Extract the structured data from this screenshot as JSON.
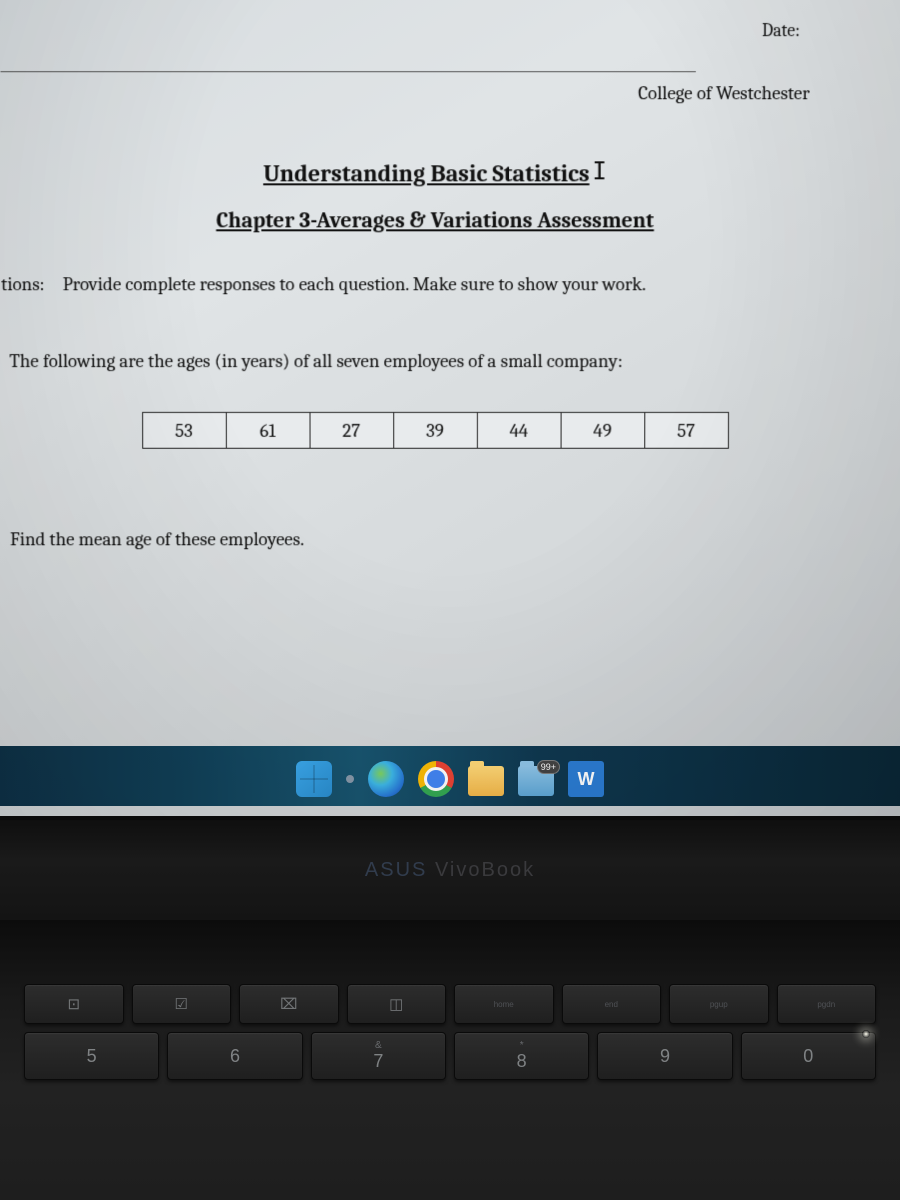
{
  "header": {
    "date_label": "Date:",
    "college": "College of Westchester"
  },
  "document": {
    "title_main": "Understanding Basic Statistics",
    "title_cursor": "I",
    "title_sub": "Chapter 3-Averages & Variations Assessment",
    "instructions_label": "tions:",
    "instructions_text": "Provide complete responses to each question.  Make sure to show your work.",
    "question_intro": "The following are the ages (in years) of all seven employees of a small company:",
    "data_values": [
      "53",
      "61",
      "27",
      "39",
      "44",
      "49",
      "57"
    ],
    "question_sub": "Find the mean age of these employees."
  },
  "taskbar": {
    "badge_count": "99+",
    "word_label": "W"
  },
  "laptop": {
    "brand_prefix": "ASUS ",
    "brand_model": "VivoBook"
  },
  "keyboard": {
    "fn_keys": [
      {
        "sym": "⊡",
        "label": ""
      },
      {
        "sym": "☑",
        "label": ""
      },
      {
        "sym": "⌧",
        "label": ""
      },
      {
        "sym": "◫",
        "label": ""
      },
      {
        "sym": "",
        "label": "home"
      },
      {
        "sym": "",
        "label": "end"
      },
      {
        "sym": "",
        "label": "pgup"
      },
      {
        "sym": "",
        "label": "pgdn"
      }
    ],
    "num_keys": [
      {
        "top": "",
        "main": "5"
      },
      {
        "top": "",
        "main": "6"
      },
      {
        "top": "&",
        "main": "7"
      },
      {
        "top": "*",
        "main": "8"
      },
      {
        "top": "",
        "main": "9"
      },
      {
        "top": "",
        "main": "0"
      }
    ]
  },
  "colors": {
    "page_bg": "#dde1e3",
    "text": "#111111",
    "border": "#222222",
    "taskbar_bg": "#104058",
    "bezel_bg": "#141414",
    "key_bg": "#252525"
  }
}
